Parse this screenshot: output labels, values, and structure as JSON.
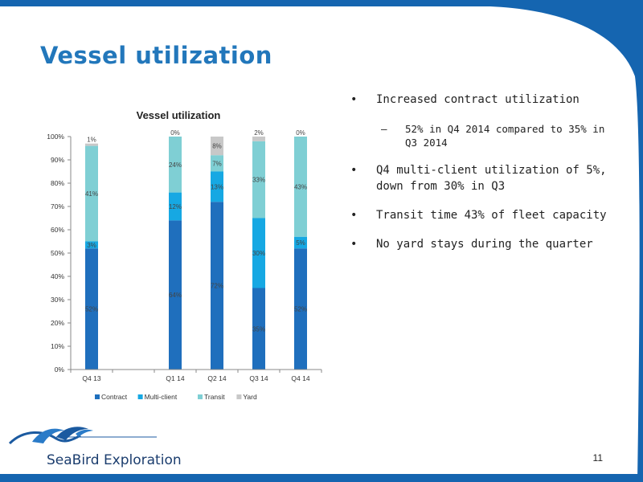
{
  "slide": {
    "title": "Vessel utilization",
    "page_number": "11",
    "logo_text": "SeaBird Exploration"
  },
  "bullets": [
    {
      "text": "Increased contract utilization",
      "level": 1
    },
    {
      "text": "52% in Q4 2014 compared to 35% in Q3 2014",
      "level": 2
    },
    {
      "text": "Q4 multi-client utilization of 5%, down from 30% in Q3",
      "level": 1
    },
    {
      "text": "Transit time 43% of fleet capacity",
      "level": 1
    },
    {
      "text": "No yard stays during the quarter",
      "level": 1
    }
  ],
  "bullet_symbols": {
    "level1": "•",
    "level2": "–"
  },
  "colors": {
    "title": "#2277bb",
    "frame": "#1565b0"
  },
  "chart_data": {
    "type": "bar",
    "stacked": true,
    "title": "Vessel utilization",
    "categories": [
      "Q4 13",
      "",
      "Q1 14",
      "Q2 14",
      "Q3 14",
      "Q4 14"
    ],
    "ylim": [
      0,
      100
    ],
    "yticks": [
      "0%",
      "10%",
      "20%",
      "30%",
      "40%",
      "50%",
      "60%",
      "70%",
      "80%",
      "90%",
      "100%"
    ],
    "grid": false,
    "legend_position": "bottom",
    "series": [
      {
        "name": "Contract",
        "color": "#1f6fbd",
        "values": [
          52,
          null,
          64,
          72,
          35,
          52
        ],
        "labels": [
          "52%",
          "",
          "64%",
          "72%",
          "35%",
          "52%"
        ]
      },
      {
        "name": "Multi-client",
        "color": "#16a8e3",
        "values": [
          3,
          null,
          12,
          13,
          30,
          5
        ],
        "labels": [
          "3%",
          "",
          "12%",
          "13%",
          "30%",
          "5%"
        ]
      },
      {
        "name": "Transit",
        "color": "#7fcfd4",
        "values": [
          41,
          null,
          24,
          7,
          33,
          43
        ],
        "labels": [
          "41%",
          "",
          "24%",
          "7%",
          "33%",
          "43%"
        ]
      },
      {
        "name": "Yard",
        "color": "#c8c8c8",
        "values": [
          1,
          null,
          0,
          8,
          2,
          0
        ],
        "labels": [
          "1%",
          "",
          "0%",
          "8%",
          "2%",
          "0%"
        ]
      }
    ]
  }
}
